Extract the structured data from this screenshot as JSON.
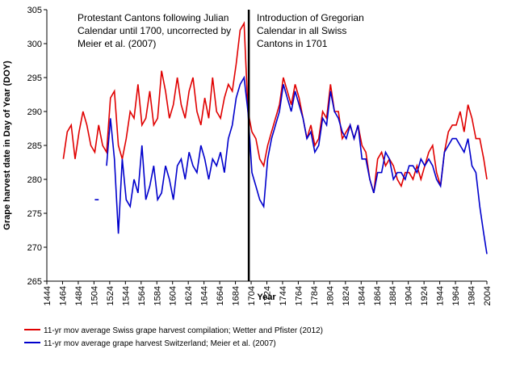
{
  "chart_data": {
    "type": "line",
    "y_label": "Grape harvest date in Day of Year (DOY)",
    "x_label": "Year",
    "annotations": [
      [
        "Protestant Cantons following Julian",
        "Calendar until 1700, uncorrected by",
        "Meier et al. (2007)"
      ],
      [
        "Introduction of Gregorian",
        "Calendar in all Swiss",
        "Cantons in 1701"
      ]
    ],
    "vline": 1701,
    "xlim": [
      1444,
      2004
    ],
    "ylim": [
      265,
      305
    ],
    "xticks": [
      1444,
      1464,
      1484,
      1504,
      1524,
      1544,
      1564,
      1584,
      1604,
      1624,
      1644,
      1664,
      1684,
      1704,
      1724,
      1744,
      1764,
      1784,
      1804,
      1824,
      1844,
      1864,
      1884,
      1904,
      1924,
      1944,
      1964,
      1984,
      2004
    ],
    "yticks": [
      265,
      270,
      275,
      280,
      285,
      290,
      295,
      300,
      305
    ],
    "x": [
      1465,
      1470,
      1475,
      1480,
      1485,
      1490,
      1495,
      1500,
      1505,
      1510,
      1515,
      1520,
      1525,
      1530,
      1535,
      1540,
      1545,
      1550,
      1555,
      1560,
      1565,
      1570,
      1575,
      1580,
      1585,
      1590,
      1595,
      1600,
      1605,
      1610,
      1615,
      1620,
      1625,
      1630,
      1635,
      1640,
      1645,
      1650,
      1655,
      1660,
      1665,
      1670,
      1675,
      1680,
      1685,
      1690,
      1695,
      1700,
      1705,
      1710,
      1715,
      1720,
      1725,
      1730,
      1735,
      1740,
      1745,
      1750,
      1755,
      1760,
      1765,
      1770,
      1775,
      1780,
      1785,
      1790,
      1795,
      1800,
      1805,
      1810,
      1815,
      1820,
      1825,
      1830,
      1835,
      1840,
      1845,
      1850,
      1855,
      1860,
      1865,
      1870,
      1875,
      1880,
      1885,
      1890,
      1895,
      1900,
      1905,
      1910,
      1915,
      1920,
      1925,
      1930,
      1935,
      1940,
      1945,
      1950,
      1955,
      1960,
      1965,
      1970,
      1975,
      1980,
      1985,
      1990,
      1995,
      2000,
      2004
    ],
    "series": [
      {
        "name": "11-yr mov average Swiss grape harvest compilation;  Wetter and Pfister (2012)",
        "color": "#e00000",
        "values": [
          283,
          287,
          288,
          283,
          287,
          290,
          288,
          285,
          284,
          288,
          285,
          284,
          292,
          293,
          285,
          283,
          286,
          290,
          289,
          294,
          288,
          289,
          293,
          288,
          289,
          296,
          293,
          289,
          291,
          295,
          291,
          289,
          293,
          295,
          290,
          288,
          292,
          289,
          295,
          290,
          289,
          292,
          294,
          293,
          297,
          302,
          303,
          290,
          287,
          286,
          283,
          282,
          285,
          287,
          289,
          291,
          295,
          293,
          291,
          294,
          292,
          289,
          286,
          288,
          285,
          286,
          290,
          289,
          294,
          290,
          290,
          286,
          287,
          288,
          286,
          288,
          285,
          284,
          280,
          278,
          283,
          284,
          282,
          283,
          282,
          280,
          279,
          281,
          281,
          280,
          282,
          280,
          282,
          284,
          285,
          281,
          279,
          284,
          287,
          288,
          288,
          290,
          287,
          291,
          289,
          286,
          286,
          283,
          280
        ]
      },
      {
        "name": "11-yr mov average grape harvest Switzerland; Meier et al. (2007)",
        "color": "#0000cc",
        "values": [
          null,
          null,
          null,
          null,
          null,
          null,
          null,
          null,
          277,
          277,
          null,
          282,
          289,
          283,
          272,
          283,
          277,
          276,
          280,
          278,
          285,
          277,
          279,
          282,
          277,
          278,
          282,
          280,
          277,
          282,
          283,
          280,
          284,
          282,
          281,
          285,
          283,
          280,
          283,
          282,
          284,
          281,
          286,
          288,
          292,
          294,
          295,
          290,
          281,
          279,
          277,
          276,
          283,
          286,
          288,
          290,
          294,
          292,
          290,
          293,
          291,
          289,
          286,
          287,
          284,
          285,
          289,
          288,
          293,
          290,
          289,
          287,
          286,
          288,
          286,
          288,
          283,
          283,
          280,
          278,
          281,
          281,
          284,
          283,
          280,
          281,
          281,
          280,
          282,
          282,
          281,
          283,
          282,
          283,
          282,
          280,
          279,
          284,
          285,
          286,
          286,
          285,
          284,
          286,
          282,
          281,
          276,
          272,
          269
        ]
      }
    ]
  }
}
